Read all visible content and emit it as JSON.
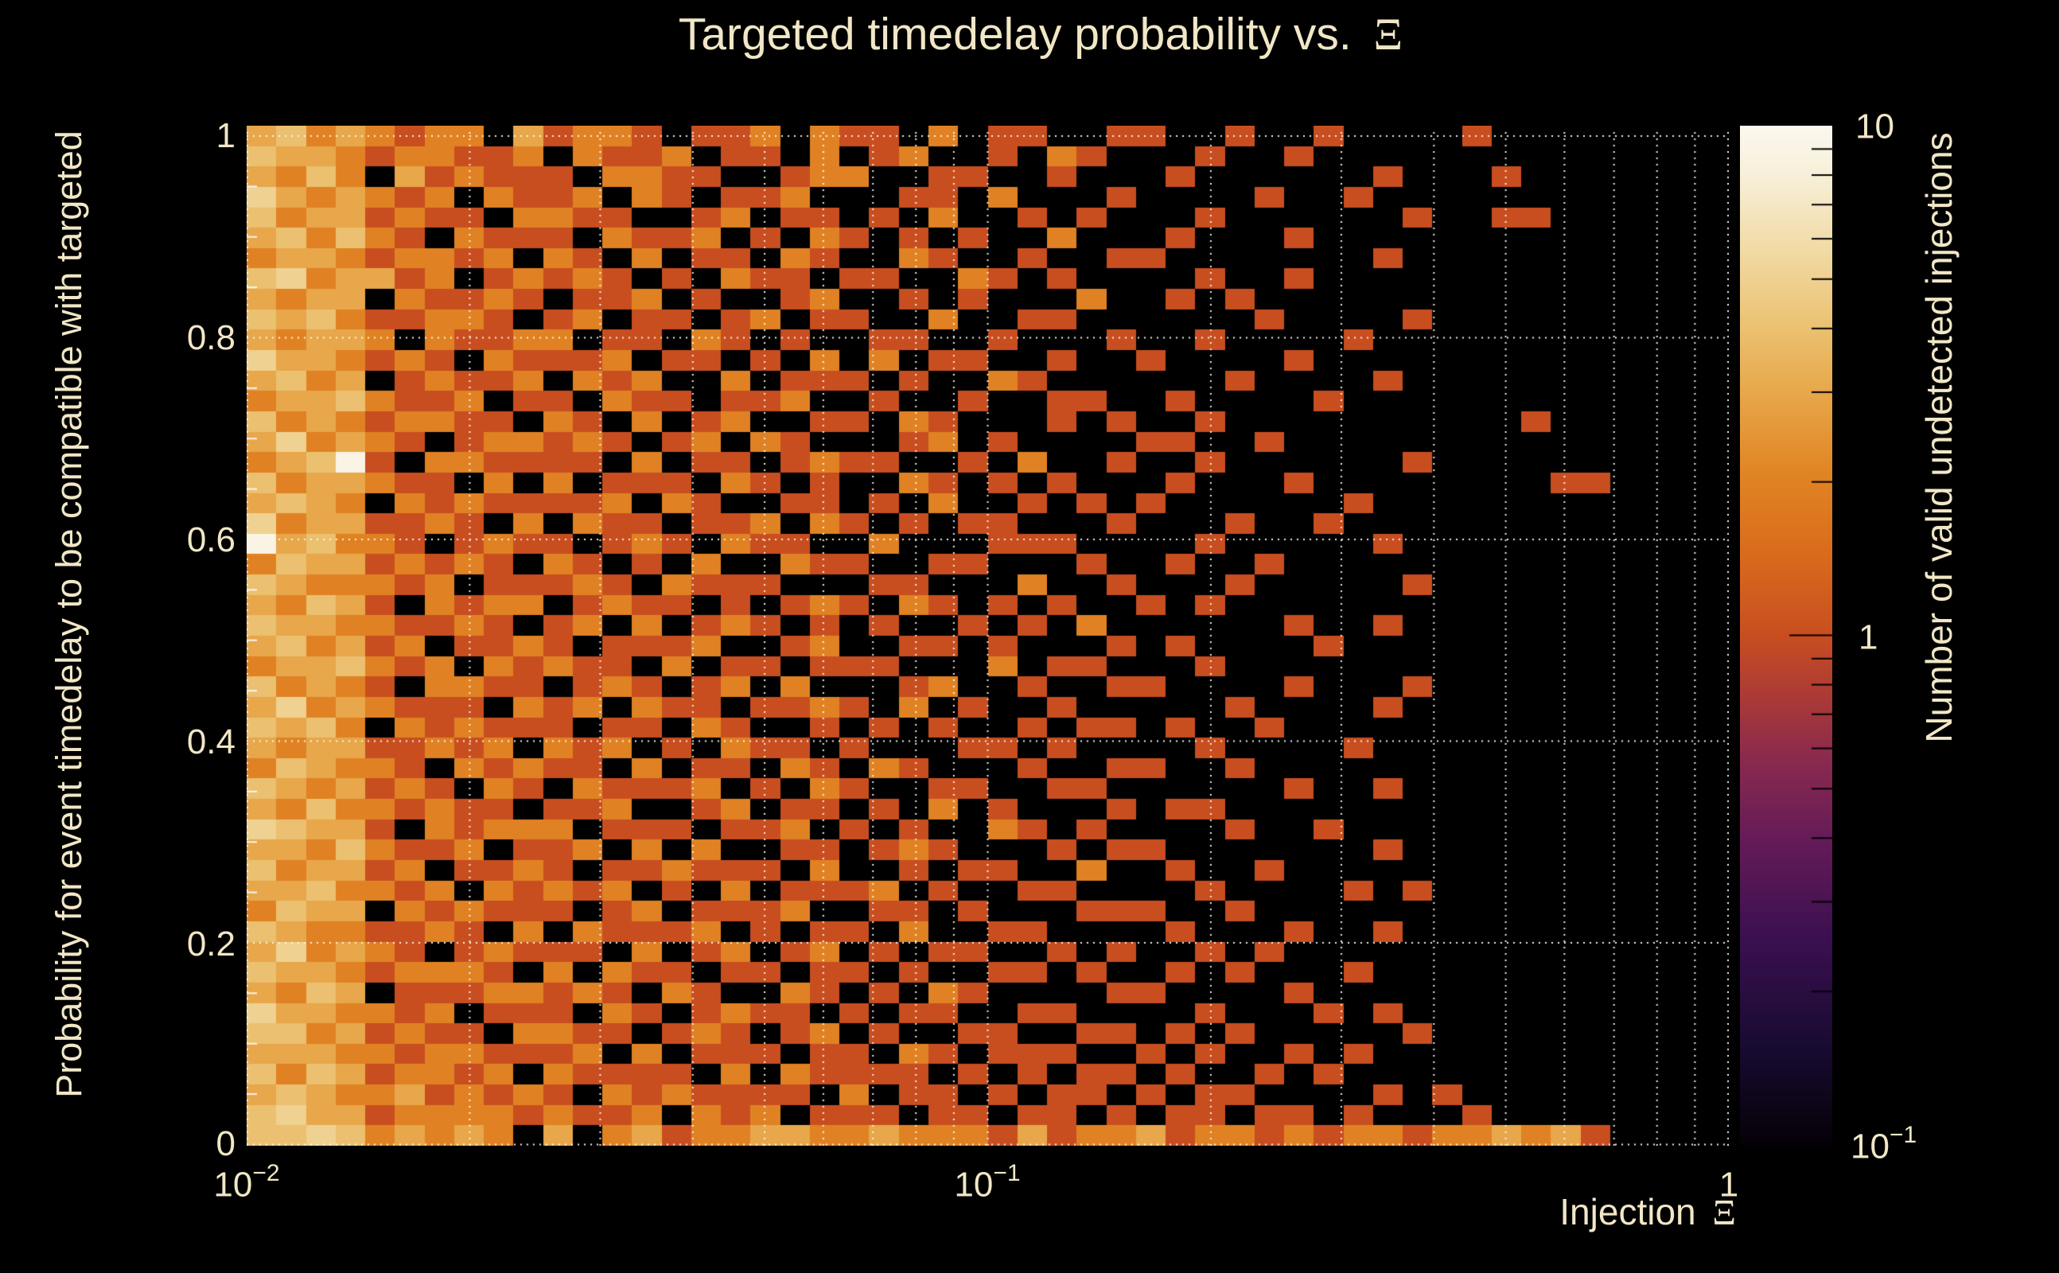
{
  "title": {
    "text": "Targeted timedelay probability vs. ",
    "symbol": "Ξ"
  },
  "axes": {
    "x": {
      "title_text": "Injection ",
      "title_symbol": "Ξ",
      "scale": "log",
      "ticks": [
        {
          "base": "10",
          "exp": "−2",
          "value": 0.01
        },
        {
          "base": "10",
          "exp": "−1",
          "value": 0.1
        },
        {
          "base": "1",
          "exp": "",
          "value": 1
        }
      ]
    },
    "y": {
      "title": "Probability for event timedelay to be compatible with targeted",
      "scale": "linear",
      "ticks": [
        "1",
        "0.8",
        "0.6",
        "0.4",
        "0.2",
        "0"
      ],
      "tick_values": [
        1,
        0.8,
        0.6,
        0.4,
        0.2,
        0
      ]
    },
    "z": {
      "title": "Number of valid undetected injections",
      "scale": "log",
      "ticks": [
        {
          "base": "10",
          "exp": "",
          "value": 10
        },
        {
          "base": "1",
          "exp": "",
          "value": 1
        },
        {
          "base": "10",
          "exp": "−1",
          "value": 0.1
        }
      ]
    }
  },
  "colors": {
    "background": "#000000",
    "text": "#f1e7c6",
    "grid": "rgba(250,250,246,0.95)",
    "colorbar_tick": "#000000",
    "colormap": [
      [
        0.0,
        "#050107"
      ],
      [
        0.1,
        "#190b32"
      ],
      [
        0.2,
        "#3a0f4f"
      ],
      [
        0.3,
        "#651b58"
      ],
      [
        0.38,
        "#8b2a4e"
      ],
      [
        0.44,
        "#ab3a36"
      ],
      [
        0.5,
        "#c84e20"
      ],
      [
        0.58,
        "#d96b1c"
      ],
      [
        0.66,
        "#e18524"
      ],
      [
        0.74,
        "#e7a84b"
      ],
      [
        0.81,
        "#ecc476"
      ],
      [
        0.88,
        "#f1dba6"
      ],
      [
        0.95,
        "#f7efd8"
      ],
      [
        1.0,
        "#fbf8ee"
      ]
    ]
  },
  "chart_data": {
    "type": "heatmap",
    "x_range": [
      0.01,
      1
    ],
    "x_scale": "log",
    "y_range": [
      0,
      1
    ],
    "y_scale": "linear",
    "z_range": [
      0.1,
      10
    ],
    "z_scale": "log",
    "n_cols": 50,
    "n_rows": 50,
    "encoding": "one char per cell; digit = bin count (0 = empty/black); rows listed top (y=1) to bottom (y=0); columns left (x=0.01) to right (x=1), log-uniform bins",
    "matrix": [
      "34232122031221011202110201100110010010000100000000",
      "43321221120211201102012001021000100100000000000000",
      "32420312111022110012200110010001000000100010000000",
      "53232120211202101120001102000100001001000000000000",
      "42331211022110012011010200101000100000010011000000",
      "34242102111021120102101010020001000100000000000000",
      "23321221202102011021002100100110000000100000000000",
      "45233120121210102110110021010000100100000000000000",
      "32330211210112010012001010002001010000000000000000",
      "43421122101201101201100200110000001000010000000000",
      "32332021122011021010011001000100100001000000000000",
      "53321210211120110102020110010010000100000000000000",
      "34230121120212002011101002100000010000100000000000",
      "23342112011021101120010010011001000010000000000000",
      "42321221102102012001102100010100100000000001000000",
      "35232101221210120210001201000011001000000000000000",
      "23491022111102011012110010200100100000010000000000",
      "42332110202011102101002101010001000100000000110000",
      "34320212111120210011010200101010000001000000000000",
      "52331121020211011202101011000100010010000000000000",
      "93422101211012102110020001110000100000100000000000",
      "24331212102101020021100110001001001000000000000000",
      "43222120111210211100011000200100010000010000000000",
      "32431021220121101012102101010010100000000000000000",
      "43322112101202012101010010102000000100100000000000",
      "34231201121011120012001101000101000010000000000000",
      "23342120212110201101110002011000100000000000000000",
      "42321022110121012020001200100110000100010000000000",
      "35232111021202110112102010010000010000100000000000",
      "43420212111011021001010100101101001000000000000000",
      "32331121202120102110100011010000100001000000000000",
      "24322102121102011021021000100110010000000000000000",
      "43231210210211120102100110011000000100100000000000",
      "32422121101120012011010201000101100000000000000000",
      "54331021222011101120101002101000010010000000000000",
      "33242112011202020011012100010110000000100000000000",
      "42331201121011211102001011002001001000000000000000",
      "33422120212120102011120100110000100001010000000000",
      "24330212111012011120011010001110010000000000000000",
      "43221121020211120101102001100001000100100000000000",
      "35232101211102012012010110010100101000000000000000",
      "43321222102021101101101001101001010001000000000000",
      "32430111221210210021010210000110000100000000000000",
      "53322120111021012110101100110000100010100000000000",
      "44231211022110121012010011001101010000010000000000",
      "33322122111202011101102101110010100101000000000000",
      "42431221202111102021111010101101001010000000000000",
      "34322312121021211110201101011010110000101000000000",
      "45331222212112021201110110110101101101000100000000",
      "44542323203023122332232221312231221212212232310000"
    ]
  }
}
